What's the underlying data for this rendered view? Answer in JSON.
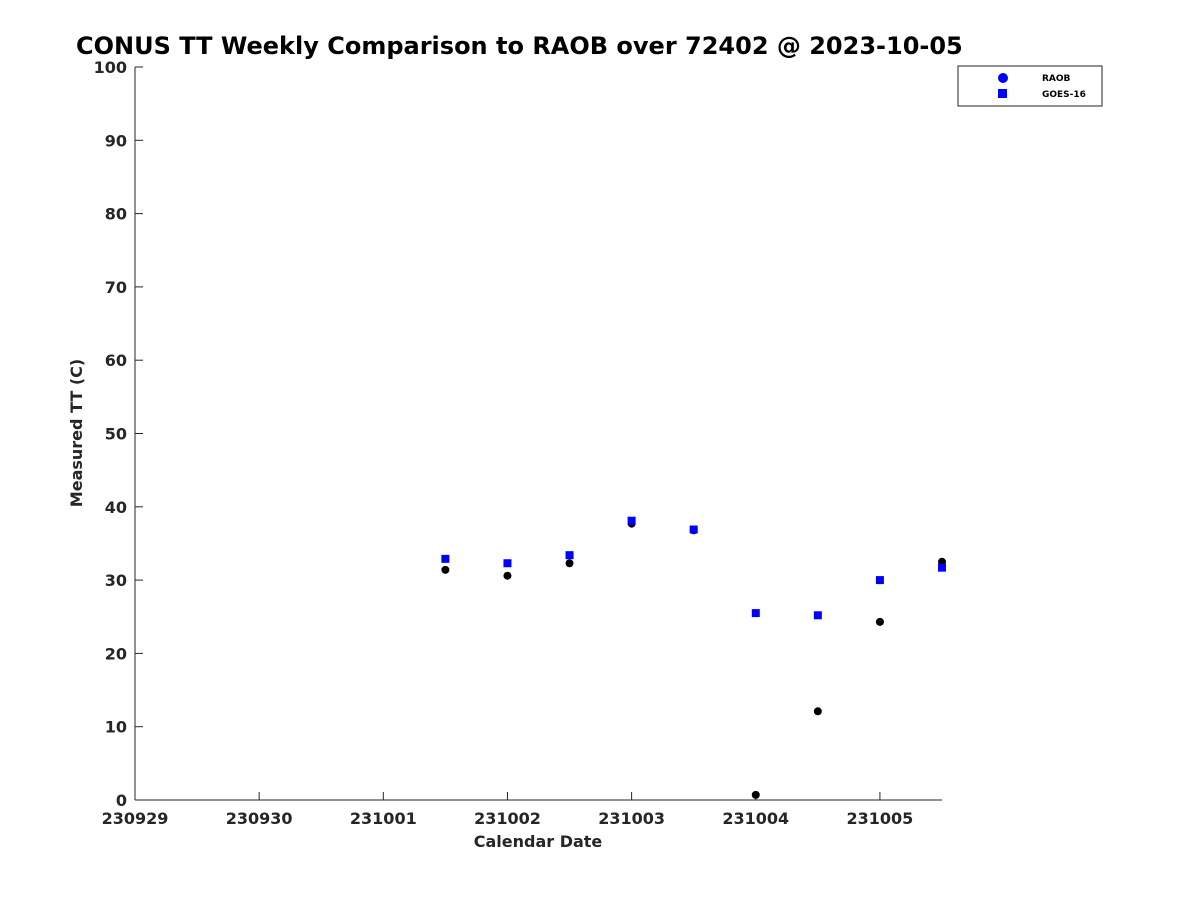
{
  "chart_data": {
    "type": "scatter",
    "title": "CONUS TT Weekly Comparison to RAOB over 72402 @ 2023-10-05",
    "xlabel": "Calendar Date",
    "ylabel": "Measured TT (C)",
    "xticks": [
      "230929",
      "230930",
      "231001",
      "231002",
      "231003",
      "231004",
      "231005"
    ],
    "xlim": [
      "230929",
      "231005 12Z"
    ],
    "ylim": [
      0,
      100
    ],
    "yticks": [
      "0",
      "10",
      "20",
      "30",
      "40",
      "50",
      "60",
      "70",
      "80",
      "90",
      "100"
    ],
    "grid": false,
    "legend_position": "top-right",
    "series": [
      {
        "name": "RAOB",
        "marker": "circle",
        "color": "#000000",
        "legend_color": "#0000ff",
        "points": [
          {
            "x": "231001 12Z",
            "y": 31.4
          },
          {
            "x": "231002 00Z",
            "y": 30.6
          },
          {
            "x": "231002 12Z",
            "y": 32.3
          },
          {
            "x": "231003 00Z",
            "y": 37.7
          },
          {
            "x": "231003 12Z",
            "y": 36.8
          },
          {
            "x": "231004 00Z",
            "y": 0.7
          },
          {
            "x": "231004 12Z",
            "y": 12.1
          },
          {
            "x": "231005 00Z",
            "y": 24.3
          },
          {
            "x": "231005 12Z",
            "y": 32.5
          }
        ]
      },
      {
        "name": "GOES-16",
        "marker": "square",
        "color": "#0000ff",
        "legend_color": "#0000ff",
        "points": [
          {
            "x": "231001 12Z",
            "y": 32.9
          },
          {
            "x": "231002 00Z",
            "y": 32.3
          },
          {
            "x": "231002 12Z",
            "y": 33.4
          },
          {
            "x": "231003 00Z",
            "y": 38.1
          },
          {
            "x": "231003 12Z",
            "y": 36.9
          },
          {
            "x": "231004 00Z",
            "y": 25.5
          },
          {
            "x": "231004 12Z",
            "y": 25.2
          },
          {
            "x": "231005 00Z",
            "y": 30.0
          },
          {
            "x": "231005 12Z",
            "y": 31.7
          }
        ]
      }
    ]
  }
}
